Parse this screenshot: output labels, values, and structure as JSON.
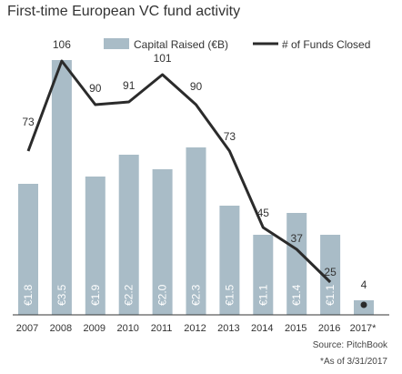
{
  "chart_data": {
    "type": "bar+line",
    "title": "First-time European VC fund activity",
    "categories": [
      "2007",
      "2008",
      "2009",
      "2010",
      "2011",
      "2012",
      "2013",
      "2014",
      "2015",
      "2016",
      "2017*"
    ],
    "series": [
      {
        "name": "Capital Raised (€B)",
        "type": "bar",
        "values": [
          1.8,
          3.5,
          1.9,
          2.2,
          2.0,
          2.3,
          1.5,
          1.1,
          1.4,
          1.1,
          0.2
        ],
        "labels": [
          "€1.8",
          "€3.5",
          "€1.9",
          "€2.2",
          "€2.0",
          "€2.3",
          "€1.5",
          "€1.1",
          "€1.4",
          "€1.1",
          ""
        ]
      },
      {
        "name": "# of Funds Closed",
        "type": "line",
        "values": [
          73,
          106,
          90,
          91,
          101,
          90,
          73,
          45,
          37,
          25,
          4
        ]
      }
    ],
    "legend": "top",
    "grid": false
  },
  "colors": {
    "bar": "#a9bcc7",
    "line": "#2b2b2b",
    "text": "#333333",
    "axis": "#333333"
  },
  "footer": {
    "source": "Source: PitchBook",
    "note": "*As of 3/31/2017"
  }
}
